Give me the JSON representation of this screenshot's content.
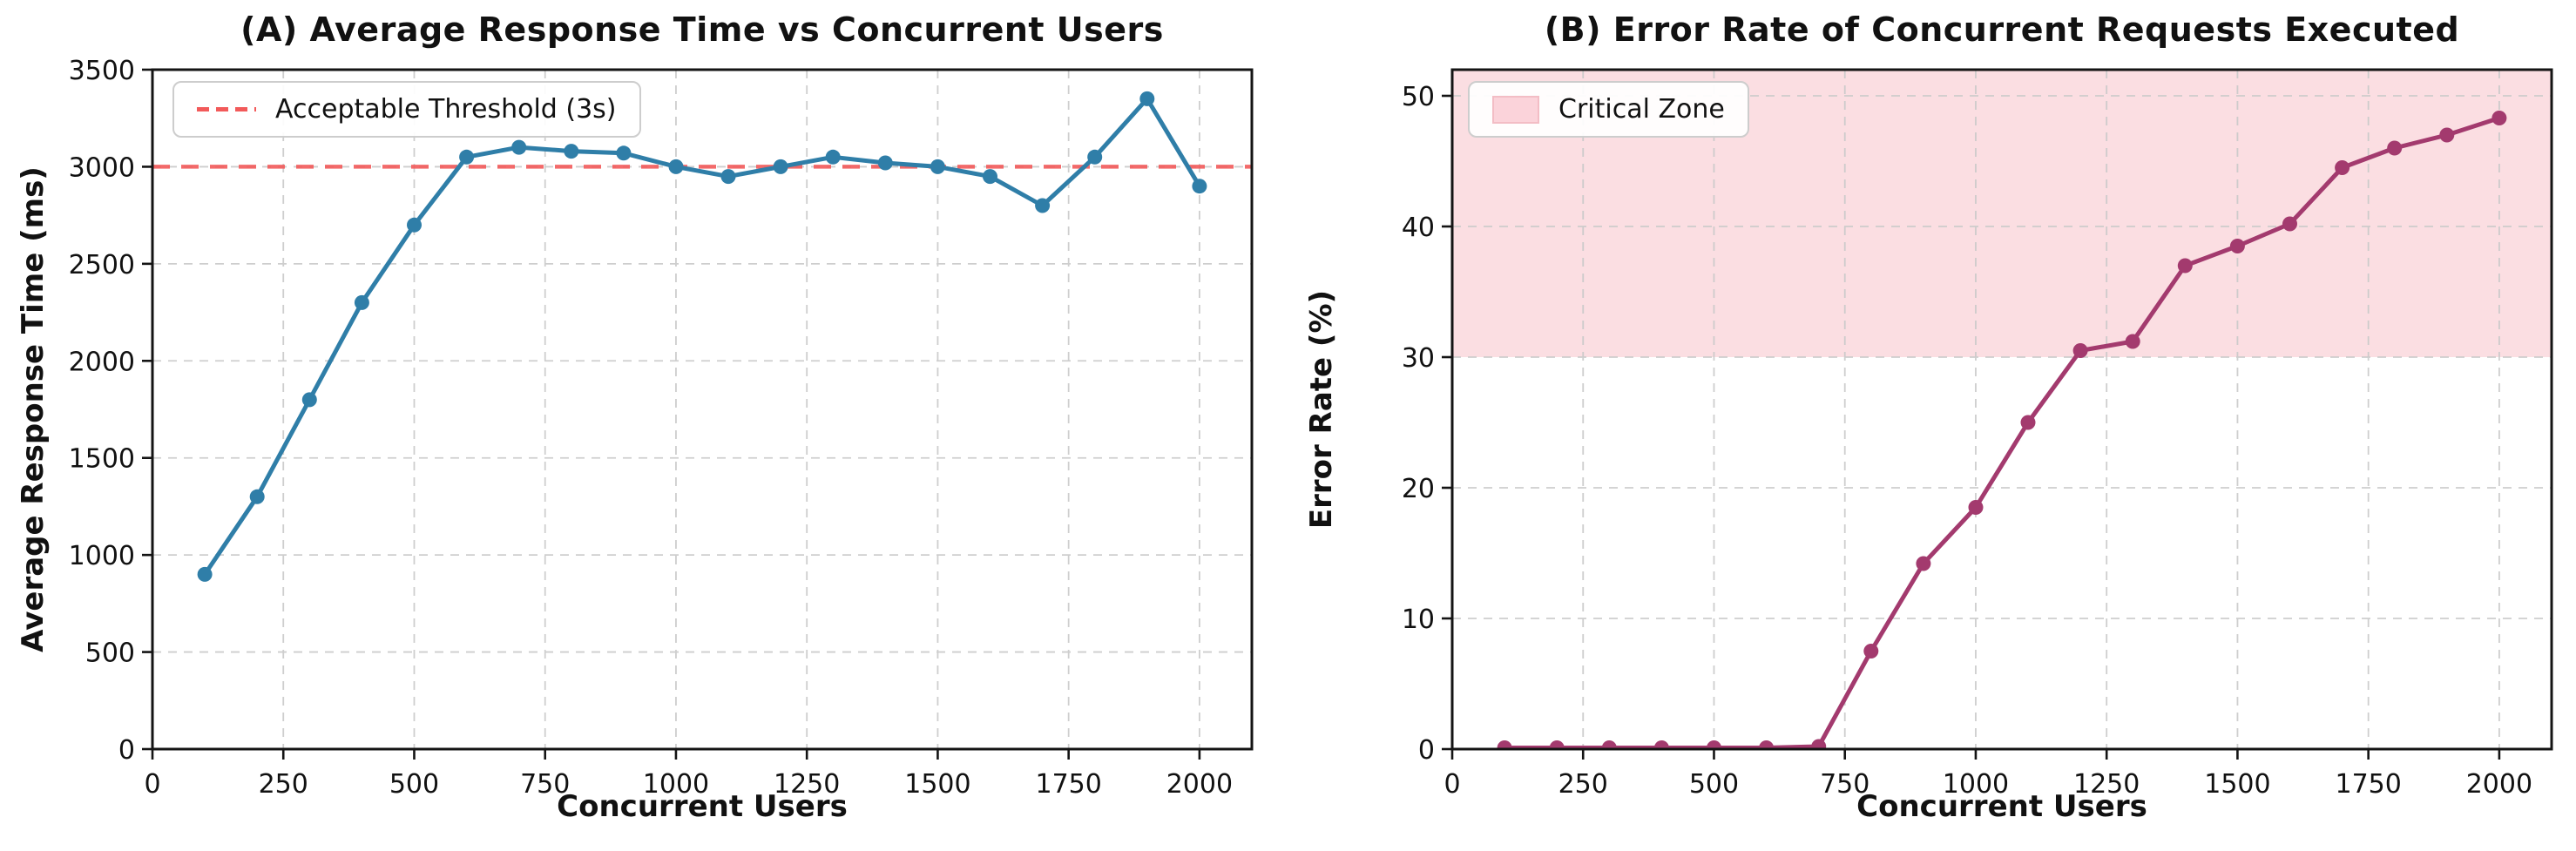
{
  "figure": {
    "background": "#ffffff"
  },
  "chart_data": [
    {
      "type": "line",
      "title": "(A) Average Response Time vs Concurrent Users",
      "xlabel": "Concurrent Users",
      "ylabel": "Average Response Time (ms)",
      "x": [
        100,
        200,
        300,
        400,
        500,
        600,
        700,
        800,
        900,
        1000,
        1100,
        1200,
        1300,
        1400,
        1500,
        1600,
        1700,
        1800,
        1900,
        2000
      ],
      "y": [
        900,
        1300,
        1800,
        2300,
        2700,
        3050,
        3100,
        3080,
        3070,
        3000,
        2950,
        3000,
        3050,
        3020,
        3000,
        2950,
        2800,
        3050,
        3350,
        2900
      ],
      "xlim": [
        0,
        2100
      ],
      "ylim": [
        0,
        3500
      ],
      "xticks": [
        0,
        250,
        500,
        750,
        1000,
        1250,
        1500,
        1750,
        2000
      ],
      "yticks": [
        0,
        500,
        1000,
        1500,
        2000,
        2500,
        3000,
        3500
      ],
      "grid": true,
      "line_color": "#2F7EA8",
      "marker": "circle",
      "threshold": {
        "value": 3000,
        "color": "#F25A5A",
        "style": "dashed"
      },
      "legend": {
        "label": "Acceptable Threshold (3s)",
        "position": "upper-left",
        "swatch": "dashed-line"
      }
    },
    {
      "type": "line",
      "title": "(B) Error Rate of Concurrent Requests Executed",
      "xlabel": "Concurrent Users",
      "ylabel": "Error Rate (%)",
      "x": [
        100,
        200,
        300,
        400,
        500,
        600,
        700,
        800,
        900,
        1000,
        1100,
        1200,
        1300,
        1400,
        1500,
        1600,
        1700,
        1800,
        1900,
        2000
      ],
      "y": [
        0.1,
        0.1,
        0.1,
        0.1,
        0.1,
        0.1,
        0.2,
        7.5,
        14.2,
        18.5,
        25,
        30.5,
        31.2,
        37,
        38.5,
        40.2,
        44.5,
        46,
        47,
        48.3
      ],
      "xlim": [
        0,
        2100
      ],
      "ylim": [
        0,
        52
      ],
      "xticks": [
        0,
        250,
        500,
        750,
        1000,
        1250,
        1500,
        1750,
        2000
      ],
      "yticks": [
        0,
        10,
        20,
        30,
        40,
        50
      ],
      "grid": true,
      "line_color": "#A33A6E",
      "marker": "circle",
      "zone": {
        "y_start": 30,
        "color": "#FBDEE2"
      },
      "legend": {
        "label": "Critical Zone",
        "position": "upper-left",
        "swatch": "patch"
      }
    }
  ]
}
